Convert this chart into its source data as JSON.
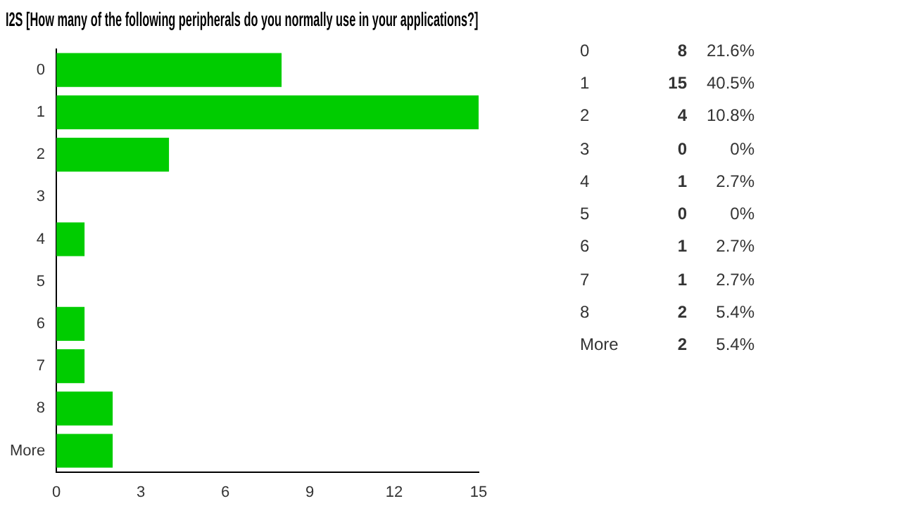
{
  "chart_data": {
    "type": "bar",
    "orientation": "horizontal",
    "title": "I2S [How many of the following peripherals do you normally use in your applications?]",
    "categories": [
      "0",
      "1",
      "2",
      "3",
      "4",
      "5",
      "6",
      "7",
      "8",
      "More"
    ],
    "values": [
      8,
      15,
      4,
      0,
      1,
      0,
      1,
      1,
      2,
      2
    ],
    "color": "#00cc00",
    "xlim": [
      0,
      15
    ],
    "xticks": [
      0,
      3,
      6,
      9,
      12,
      15
    ],
    "grid": false,
    "legend": false,
    "annotations": [
      "0",
      "8",
      "21.6%",
      "1",
      "15",
      "40.5%",
      "2",
      "4",
      "10.8%",
      "3",
      "0",
      "0%",
      "4",
      "1",
      "2.7%",
      "5",
      "0",
      "0%",
      "6",
      "1",
      "2.7%",
      "7",
      "1",
      "2.7%",
      "8",
      "2",
      "5.4%",
      "More",
      "2",
      "5.4%"
    ]
  }
}
